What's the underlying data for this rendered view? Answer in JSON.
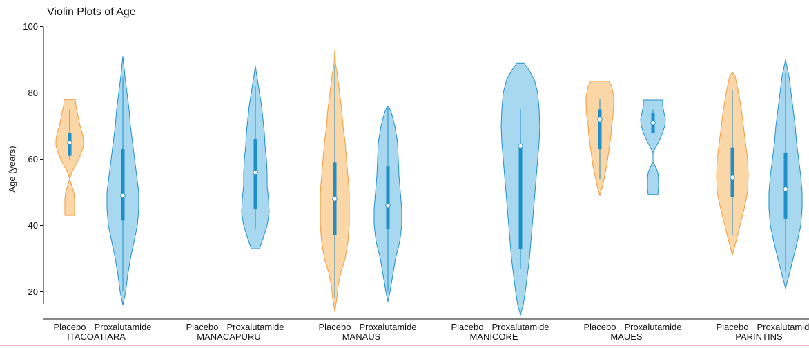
{
  "chart_data": {
    "type": "violin",
    "title": "Violin Plots of Age",
    "ylabel": "Age (years)",
    "ylim": [
      12,
      100
    ],
    "yticks": [
      20,
      40,
      60,
      80,
      100
    ],
    "colors": {
      "placebo_fill": "#fbd6a6",
      "placebo_stroke": "#f39a3c",
      "proxalutamide_fill": "#a8d8f0",
      "proxalutamide_stroke": "#1e8fc9",
      "box": "#1e8fc9"
    },
    "groups": [
      {
        "site": "ITACOATIARA",
        "violins": [
          {
            "label": "Placebo",
            "arm": "placebo",
            "profile": [
              [
                43,
                7
              ],
              [
                46,
                7
              ],
              [
                48,
                7
              ],
              [
                50,
                6
              ],
              [
                52,
                3
              ],
              [
                54,
                0
              ],
              [
                56,
                3
              ],
              [
                58,
                8
              ],
              [
                60,
                13
              ],
              [
                62,
                17
              ],
              [
                64,
                20
              ],
              [
                66,
                20
              ],
              [
                68,
                18
              ],
              [
                70,
                15
              ],
              [
                72,
                13
              ],
              [
                74,
                11
              ],
              [
                76,
                9
              ],
              [
                78,
                8
              ]
            ],
            "q1": 61,
            "median": 65,
            "q3": 68,
            "whisker_low": 60,
            "whisker_high": 75
          },
          {
            "label": "Proxalutamide",
            "arm": "proxalutamide",
            "profile": [
              [
                16,
                0
              ],
              [
                20,
                4
              ],
              [
                25,
                7
              ],
              [
                30,
                11
              ],
              [
                35,
                16
              ],
              [
                40,
                21
              ],
              [
                45,
                23
              ],
              [
                50,
                23
              ],
              [
                55,
                20
              ],
              [
                60,
                17
              ],
              [
                65,
                14
              ],
              [
                70,
                11
              ],
              [
                75,
                9
              ],
              [
                80,
                6
              ],
              [
                85,
                3
              ],
              [
                91,
                0
              ]
            ],
            "q1": 41.5,
            "median": 49,
            "q3": 63,
            "whisker_low": 20,
            "whisker_high": 85
          }
        ]
      },
      {
        "site": "MANACAPURU",
        "violins": [
          {
            "label": "Placebo",
            "arm": "placebo",
            "profile": [],
            "q1": null,
            "median": null,
            "q3": null,
            "whisker_low": null,
            "whisker_high": null
          },
          {
            "label": "Proxalutamide",
            "arm": "proxalutamide",
            "profile": [
              [
                33,
                6
              ],
              [
                36,
                11
              ],
              [
                40,
                17
              ],
              [
                44,
                20
              ],
              [
                48,
                19
              ],
              [
                52,
                17
              ],
              [
                56,
                17
              ],
              [
                60,
                16
              ],
              [
                64,
                14
              ],
              [
                68,
                13
              ],
              [
                72,
                11
              ],
              [
                76,
                9
              ],
              [
                80,
                6
              ],
              [
                84,
                3
              ],
              [
                88,
                0
              ]
            ],
            "q1": 45,
            "median": 56,
            "q3": 66,
            "whisker_low": 39,
            "whisker_high": 82
          }
        ]
      },
      {
        "site": "MANAUS",
        "violins": [
          {
            "label": "Placebo",
            "arm": "placebo",
            "profile": [
              [
                14,
                0
              ],
              [
                18,
                3
              ],
              [
                22,
                5
              ],
              [
                26,
                9
              ],
              [
                30,
                15
              ],
              [
                35,
                19
              ],
              [
                40,
                21
              ],
              [
                45,
                21
              ],
              [
                50,
                21
              ],
              [
                55,
                19
              ],
              [
                60,
                17
              ],
              [
                65,
                15
              ],
              [
                70,
                12
              ],
              [
                75,
                10
              ],
              [
                80,
                7
              ],
              [
                85,
                4
              ],
              [
                89,
                1
              ],
              [
                93,
                0
              ]
            ],
            "q1": 37,
            "median": 48,
            "q3": 59,
            "whisker_low": 18,
            "whisker_high": 88
          },
          {
            "label": "Proxalutamide",
            "arm": "proxalutamide",
            "profile": [
              [
                17,
                0
              ],
              [
                20,
                3
              ],
              [
                25,
                7
              ],
              [
                30,
                11
              ],
              [
                35,
                17
              ],
              [
                40,
                20
              ],
              [
                45,
                20
              ],
              [
                50,
                18
              ],
              [
                55,
                16
              ],
              [
                60,
                15
              ],
              [
                65,
                14
              ],
              [
                70,
                10
              ],
              [
                74,
                5
              ],
              [
                76,
                1
              ]
            ],
            "q1": 39,
            "median": 46,
            "q3": 58,
            "whisker_low": 20,
            "whisker_high": 76
          }
        ]
      },
      {
        "site": "MANICORE",
        "violins": [
          {
            "label": "Placebo",
            "arm": "placebo",
            "profile": [],
            "q1": null,
            "median": null,
            "q3": null,
            "whisker_low": null,
            "whisker_high": null
          },
          {
            "label": "Proxalutamide",
            "arm": "proxalutamide",
            "profile": [
              [
                13,
                0
              ],
              [
                16,
                4
              ],
              [
                20,
                7
              ],
              [
                25,
                10
              ],
              [
                30,
                13
              ],
              [
                35,
                15
              ],
              [
                40,
                17
              ],
              [
                45,
                19
              ],
              [
                50,
                21
              ],
              [
                55,
                23
              ],
              [
                60,
                25
              ],
              [
                65,
                27
              ],
              [
                70,
                28
              ],
              [
                75,
                27
              ],
              [
                80,
                25
              ],
              [
                84,
                20
              ],
              [
                87,
                12
              ],
              [
                89,
                5
              ]
            ],
            "q1": 33,
            "median": 64,
            "q3": 64,
            "whisker_low": 27,
            "whisker_high": 75
          }
        ]
      },
      {
        "site": "MAUES",
        "violins": [
          {
            "label": "Placebo",
            "arm": "placebo",
            "profile": [
              [
                49,
                0
              ],
              [
                52,
                4
              ],
              [
                55,
                7
              ],
              [
                58,
                10
              ],
              [
                61,
                12
              ],
              [
                64,
                14
              ],
              [
                67,
                16
              ],
              [
                70,
                17
              ],
              [
                73,
                19
              ],
              [
                76,
                20
              ],
              [
                79,
                20
              ],
              [
                82,
                17
              ],
              [
                83.5,
                13
              ]
            ],
            "q1": 63,
            "median": 72,
            "q3": 75,
            "whisker_low": 54,
            "whisker_high": 78
          },
          {
            "label": "Proxalutamide",
            "arm": "proxalutamide",
            "profile": [
              [
                49.3,
                7
              ],
              [
                51,
                8
              ],
              [
                54,
                8
              ],
              [
                56,
                7
              ],
              [
                58,
                3
              ],
              [
                59,
                0
              ],
              [
                62,
                0
              ],
              [
                64,
                5
              ],
              [
                66,
                10
              ],
              [
                68,
                14
              ],
              [
                70,
                17
              ],
              [
                72,
                18
              ],
              [
                74,
                16
              ],
              [
                76,
                14
              ],
              [
                77.8,
                14
              ]
            ],
            "q1": 68,
            "median": 71,
            "q3": 74,
            "whisker_low": 68,
            "whisker_high": 75
          }
        ]
      },
      {
        "site": "PARINTINS",
        "violins": [
          {
            "label": "Placebo",
            "arm": "placebo",
            "profile": [
              [
                31,
                0
              ],
              [
                35,
                5
              ],
              [
                40,
                11
              ],
              [
                45,
                17
              ],
              [
                50,
                22
              ],
              [
                55,
                23
              ],
              [
                60,
                22
              ],
              [
                65,
                19
              ],
              [
                70,
                16
              ],
              [
                75,
                13
              ],
              [
                80,
                9
              ],
              [
                85,
                4
              ],
              [
                86,
                1
              ]
            ],
            "q1": 48.5,
            "median": 54.5,
            "q3": 63.5,
            "whisker_low": 37,
            "whisker_high": 81
          },
          {
            "label": "Proxalutamide",
            "arm": "proxalutamide",
            "profile": [
              [
                21,
                0
              ],
              [
                25,
                5
              ],
              [
                30,
                11
              ],
              [
                35,
                17
              ],
              [
                40,
                22
              ],
              [
                45,
                24
              ],
              [
                50,
                24
              ],
              [
                55,
                22
              ],
              [
                60,
                19
              ],
              [
                65,
                16
              ],
              [
                70,
                14
              ],
              [
                75,
                11
              ],
              [
                80,
                8
              ],
              [
                85,
                5
              ],
              [
                88,
                2
              ],
              [
                90,
                0
              ]
            ],
            "q1": 42,
            "median": 51,
            "q3": 62,
            "whisker_low": 26,
            "whisker_high": 86
          }
        ]
      }
    ]
  }
}
